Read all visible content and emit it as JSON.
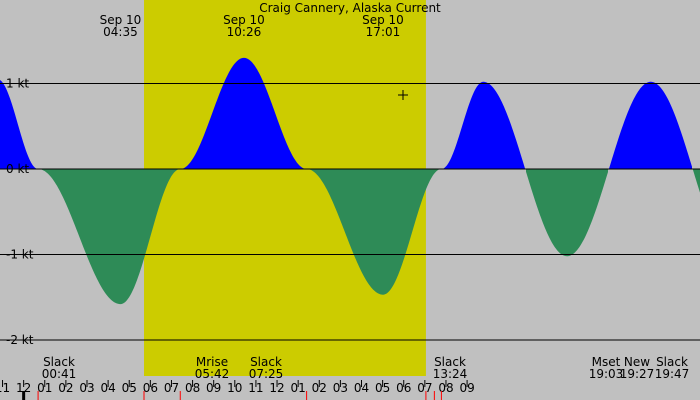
{
  "chart_data": {
    "type": "area",
    "title": "Craig Cannery, Alaska Current",
    "xlabel": "",
    "ylabel": "",
    "unit": "kt",
    "ylim": [
      -2,
      1.98
    ],
    "xlim_hours": [
      -1.12,
      32.03
    ],
    "y_ticks": [
      {
        "value": 1,
        "label": "1 kt"
      },
      {
        "value": 0,
        "label": "0 kt"
      },
      {
        "value": -1,
        "label": "-1 kt"
      },
      {
        "value": -2,
        "label": "-2 kt"
      }
    ],
    "x_ticks": [
      "11",
      "12",
      "01",
      "02",
      "03",
      "04",
      "05",
      "06",
      "07",
      "08",
      "09",
      "10",
      "11",
      "12",
      "01",
      "02",
      "03",
      "04",
      "05",
      "06",
      "07",
      "08",
      "09"
    ],
    "current_points": [
      {
        "time": "Sep 9 22:46",
        "speed": 1.05
      },
      {
        "time": "Sep 10 00:41",
        "speed": 0
      },
      {
        "time": "Sep 10 04:35",
        "speed": -1.58
      },
      {
        "time": "Sep 10 07:25",
        "speed": 0
      },
      {
        "time": "Sep 10 10:26",
        "speed": 1.3
      },
      {
        "time": "Sep 10 13:24",
        "speed": 0
      },
      {
        "time": "Sep 10 17:01",
        "speed": -1.47
      },
      {
        "time": "Sep 10 19:47",
        "speed": 0
      },
      {
        "time": "Sep 10 21:46",
        "speed": 1.02
      }
    ],
    "peaks": [
      {
        "date": "Sep 10",
        "time": "04:35"
      },
      {
        "date": "Sep 10",
        "time": "10:26"
      },
      {
        "date": "Sep 10",
        "time": "17:01"
      }
    ],
    "events": [
      {
        "label": "Slack",
        "time": "00:41"
      },
      {
        "label": "Mrise",
        "time": "05:42"
      },
      {
        "label": "Slack",
        "time": "07:25"
      },
      {
        "label": "Slack",
        "time": "13:24"
      },
      {
        "label": "Mset",
        "time": "19:03"
      },
      {
        "label": "New",
        "time": "19:27"
      },
      {
        "label": "Slack",
        "time": "19:47"
      }
    ],
    "daylight": {
      "start": "05:42",
      "end": "19:03"
    },
    "colors": {
      "background": "#c0c0c0",
      "daylight": "#cccc00",
      "flood": "#0000ff",
      "ebb": "#2e8b57",
      "grid": "#000000",
      "tick_red": "#ff0000"
    }
  }
}
